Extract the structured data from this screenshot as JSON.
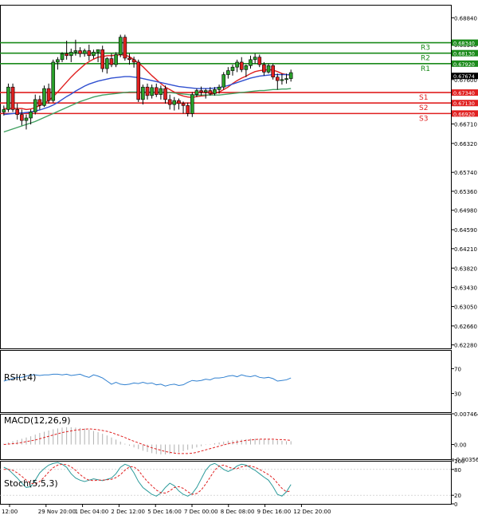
{
  "chart_data": [
    {
      "panel": "price",
      "type": "candlestick",
      "ylim": [
        0.6221,
        0.691
      ],
      "y_ticks": [
        "0.68840",
        "0.68300",
        "0.67600",
        "0.66710",
        "0.66320",
        "0.65740",
        "0.65360",
        "0.64980",
        "0.64590",
        "0.64210",
        "0.63820",
        "0.63430",
        "0.63050",
        "0.62660",
        "0.62280"
      ],
      "current_price": "0.67674",
      "x_ticks": [
        "12:00",
        "29 Nov 20:00",
        "1 Dec 04:00",
        "2 Dec 12:00",
        "5 Dec 16:00",
        "7 Dec 00:00",
        "8 Dec 08:00",
        "9 Dec 16:00",
        "12 Dec 20:00"
      ],
      "levels": [
        {
          "name": "R3",
          "value": 0.6834,
          "label": "0.68340",
          "color": "#1a8a1a"
        },
        {
          "name": "R2",
          "value": 0.6813,
          "label": "0.68130",
          "color": "#1a8a1a"
        },
        {
          "name": "R1",
          "value": 0.6792,
          "label": "0.67920",
          "color": "#1a8a1a"
        },
        {
          "name": "S1",
          "value": 0.6734,
          "label": "0.67340",
          "color": "#e02020"
        },
        {
          "name": "S2",
          "value": 0.6713,
          "label": "0.67130",
          "color": "#e02020"
        },
        {
          "name": "S3",
          "value": 0.6692,
          "label": "0.66920",
          "color": "#e02020"
        }
      ],
      "candles": [
        [
          0.6695,
          0.6708,
          0.6688,
          0.67
        ],
        [
          0.67,
          0.6752,
          0.6695,
          0.6745
        ],
        [
          0.6745,
          0.6752,
          0.6695,
          0.67
        ],
        [
          0.67,
          0.6712,
          0.668,
          0.669
        ],
        [
          0.669,
          0.67,
          0.6668,
          0.6678
        ],
        [
          0.6678,
          0.669,
          0.666,
          0.6683
        ],
        [
          0.6683,
          0.67,
          0.667,
          0.6695
        ],
        [
          0.6695,
          0.673,
          0.669,
          0.672
        ],
        [
          0.672,
          0.6728,
          0.67,
          0.6708
        ],
        [
          0.6708,
          0.6748,
          0.6705,
          0.6742
        ],
        [
          0.6742,
          0.6752,
          0.6712,
          0.6718
        ],
        [
          0.6718,
          0.68,
          0.6714,
          0.6795
        ],
        [
          0.6795,
          0.6805,
          0.678,
          0.68
        ],
        [
          0.68,
          0.6815,
          0.6795,
          0.6812
        ],
        [
          0.6812,
          0.6838,
          0.68,
          0.6808
        ],
        [
          0.6808,
          0.6822,
          0.6795,
          0.6815
        ],
        [
          0.6815,
          0.684,
          0.6808,
          0.6818
        ],
        [
          0.6818,
          0.6825,
          0.6805,
          0.6812
        ],
        [
          0.6812,
          0.6822,
          0.6806,
          0.6818
        ],
        [
          0.6818,
          0.683,
          0.6798,
          0.6808
        ],
        [
          0.6808,
          0.682,
          0.6802,
          0.6815
        ],
        [
          0.6815,
          0.682,
          0.6795,
          0.682
        ],
        [
          0.682,
          0.6828,
          0.6775,
          0.6782
        ],
        [
          0.6782,
          0.6805,
          0.6772,
          0.6802
        ],
        [
          0.6802,
          0.6812,
          0.6785,
          0.679
        ],
        [
          0.679,
          0.6815,
          0.6785,
          0.681
        ],
        [
          0.681,
          0.685,
          0.6805,
          0.6845
        ],
        [
          0.6845,
          0.685,
          0.6798,
          0.6803
        ],
        [
          0.6803,
          0.6812,
          0.679,
          0.68
        ],
        [
          0.68,
          0.6806,
          0.6784,
          0.6795
        ],
        [
          0.6795,
          0.68,
          0.6715,
          0.672
        ],
        [
          0.672,
          0.675,
          0.671,
          0.6745
        ],
        [
          0.6745,
          0.6752,
          0.672,
          0.6728
        ],
        [
          0.6728,
          0.675,
          0.6722,
          0.6744
        ],
        [
          0.6744,
          0.6752,
          0.6725,
          0.673
        ],
        [
          0.673,
          0.6748,
          0.672,
          0.6742
        ],
        [
          0.6742,
          0.6748,
          0.6712,
          0.672
        ],
        [
          0.672,
          0.673,
          0.67,
          0.671
        ],
        [
          0.671,
          0.6725,
          0.6698,
          0.6718
        ],
        [
          0.6718,
          0.6722,
          0.67,
          0.6712
        ],
        [
          0.6712,
          0.6716,
          0.6692,
          0.6708
        ],
        [
          0.6708,
          0.6714,
          0.6686,
          0.6692
        ],
        [
          0.6692,
          0.6735,
          0.6685,
          0.673
        ],
        [
          0.673,
          0.6742,
          0.6725,
          0.6738
        ],
        [
          0.6738,
          0.6746,
          0.6728,
          0.6735
        ],
        [
          0.6735,
          0.6742,
          0.6722,
          0.6738
        ],
        [
          0.6738,
          0.6745,
          0.6728,
          0.6732
        ],
        [
          0.6732,
          0.6745,
          0.6728,
          0.674
        ],
        [
          0.674,
          0.675,
          0.6732,
          0.6745
        ],
        [
          0.6745,
          0.6775,
          0.674,
          0.677
        ],
        [
          0.677,
          0.6785,
          0.6762,
          0.6778
        ],
        [
          0.6778,
          0.679,
          0.6768,
          0.6785
        ],
        [
          0.6785,
          0.68,
          0.6775,
          0.6795
        ],
        [
          0.6795,
          0.6805,
          0.6775,
          0.678
        ],
        [
          0.678,
          0.679,
          0.6765,
          0.6788
        ],
        [
          0.6788,
          0.6808,
          0.6782,
          0.68
        ],
        [
          0.68,
          0.6812,
          0.6792,
          0.6805
        ],
        [
          0.6805,
          0.681,
          0.6785,
          0.679
        ],
        [
          0.679,
          0.6795,
          0.6768,
          0.6775
        ],
        [
          0.6775,
          0.6792,
          0.6772,
          0.6788
        ],
        [
          0.6788,
          0.6792,
          0.676,
          0.6765
        ],
        [
          0.6765,
          0.6772,
          0.674,
          0.6758
        ],
        [
          0.6758,
          0.6772,
          0.675,
          0.676
        ],
        [
          0.676,
          0.6772,
          0.6752,
          0.6762
        ],
        [
          0.6762,
          0.678,
          0.6756,
          0.6774
        ]
      ],
      "ma": [
        {
          "name": "red",
          "color": "#e02020",
          "values": [
            0.6702,
            0.6702,
            0.6702,
            0.6702,
            0.6702,
            0.67,
            0.6701,
            0.6704,
            0.6708,
            0.6713,
            0.6718,
            0.6726,
            0.6735,
            0.6745,
            0.6755,
            0.6765,
            0.6774,
            0.6782,
            0.679,
            0.6796,
            0.6801,
            0.6805,
            0.6806,
            0.6808,
            0.6808,
            0.6809,
            0.681,
            0.6809,
            0.6806,
            0.68,
            0.6793,
            0.6786,
            0.6777,
            0.6768,
            0.676,
            0.6752,
            0.6745,
            0.674,
            0.6735,
            0.673,
            0.6727,
            0.6725,
            0.6724,
            0.6726,
            0.6727,
            0.6728,
            0.673,
            0.6733,
            0.6735,
            0.674,
            0.6745,
            0.6752,
            0.6758,
            0.6763,
            0.6767,
            0.6772,
            0.6776,
            0.6778,
            0.6779,
            0.678,
            0.6779,
            0.6776,
            0.6772,
            0.677,
            0.6769
          ]
        },
        {
          "name": "blue",
          "color": "#3050d0",
          "values": [
            0.669,
            0.6691,
            0.6692,
            0.6693,
            0.6693,
            0.6694,
            0.6695,
            0.6697,
            0.6699,
            0.6702,
            0.6705,
            0.6709,
            0.6714,
            0.672,
            0.6726,
            0.6731,
            0.6737,
            0.6742,
            0.6747,
            0.6751,
            0.6754,
            0.6757,
            0.6759,
            0.6761,
            0.6763,
            0.6764,
            0.6765,
            0.6766,
            0.6766,
            0.6765,
            0.6764,
            0.6762,
            0.676,
            0.6758,
            0.6756,
            0.6754,
            0.6752,
            0.675,
            0.6748,
            0.6746,
            0.6745,
            0.6744,
            0.6743,
            0.6742,
            0.6742,
            0.6742,
            0.6742,
            0.6743,
            0.6744,
            0.6746,
            0.6748,
            0.6751,
            0.6754,
            0.6757,
            0.676,
            0.6763,
            0.6765,
            0.6767,
            0.6768,
            0.6769,
            0.677,
            0.677,
            0.677,
            0.677,
            0.677
          ]
        },
        {
          "name": "green",
          "color": "#40a060",
          "values": [
            0.6655,
            0.6658,
            0.6661,
            0.6664,
            0.6667,
            0.667,
            0.6673,
            0.6676,
            0.668,
            0.6684,
            0.6688,
            0.6692,
            0.6696,
            0.67,
            0.6704,
            0.6708,
            0.6712,
            0.6716,
            0.6719,
            0.6722,
            0.6725,
            0.6727,
            0.6729,
            0.673,
            0.6731,
            0.6732,
            0.6733,
            0.6734,
            0.6735,
            0.6735,
            0.6735,
            0.6735,
            0.6735,
            0.6735,
            0.6735,
            0.6735,
            0.6734,
            0.6734,
            0.6733,
            0.6732,
            0.6731,
            0.673,
            0.6729,
            0.6729,
            0.6729,
            0.6729,
            0.6729,
            0.6729,
            0.6729,
            0.673,
            0.6731,
            0.6732,
            0.6733,
            0.6734,
            0.6735,
            0.6736,
            0.6737,
            0.6738,
            0.6738,
            0.6739,
            0.674,
            0.674,
            0.6741,
            0.6741,
            0.6742
          ]
        }
      ]
    },
    {
      "panel": "rsi",
      "type": "line",
      "label": "RSI(14)",
      "ylim": [
        0,
        100
      ],
      "y_ticks": [
        {
          "v": 70,
          "t": "70"
        },
        {
          "v": 30,
          "t": "30"
        }
      ],
      "values": [
        50,
        52,
        54,
        56,
        56,
        58,
        60,
        60,
        59,
        60,
        60,
        61,
        61,
        60,
        61,
        59,
        60,
        61,
        58,
        56,
        60,
        58,
        55,
        50,
        45,
        48,
        45,
        44,
        45,
        47,
        46,
        48,
        46,
        47,
        44,
        45,
        42,
        44,
        45,
        43,
        44,
        48,
        51,
        50,
        51,
        53,
        52,
        55,
        55,
        56,
        58,
        59,
        57,
        60,
        58,
        57,
        59,
        56,
        55,
        56,
        54,
        50,
        51,
        52,
        55
      ],
      "color": "#3080d0"
    },
    {
      "panel": "macd",
      "type": "histogram+line",
      "label": "MACD(12,26,9)",
      "ylim": [
        -0.003568,
        0.007464
      ],
      "y_ticks": [
        {
          "v": 0.007464,
          "t": "0.007464"
        },
        {
          "v": 0,
          "t": "0.00"
        },
        {
          "v": -0.003568,
          "t": "-0.003568"
        }
      ],
      "histogram": [
        0.0002,
        0.0005,
        0.0008,
        0.0011,
        0.0014,
        0.0017,
        0.002,
        0.0024,
        0.0028,
        0.0031,
        0.0034,
        0.0037,
        0.0039,
        0.0041,
        0.0042,
        0.0042,
        0.0041,
        0.004,
        0.0039,
        0.0036,
        0.0033,
        0.003,
        0.0026,
        0.0022,
        0.0017,
        0.0012,
        0.0007,
        0.0002,
        -0.0003,
        -0.0007,
        -0.0011,
        -0.0015,
        -0.0018,
        -0.0021,
        -0.0023,
        -0.0024,
        -0.0024,
        -0.0023,
        -0.0021,
        -0.0019,
        -0.0016,
        -0.0013,
        -0.001,
        -0.0007,
        -0.0004,
        -0.0001,
        0.0001,
        0.0003,
        0.0005,
        0.0007,
        0.0009,
        0.001,
        0.0011,
        0.0012,
        0.0013,
        0.0014,
        0.0014,
        0.0013,
        0.0013,
        0.0012,
        0.0011,
        0.001,
        0.0009,
        0.0008,
        0.0008
      ],
      "signal": [
        0.0,
        0.0001,
        0.0002,
        0.0003,
        0.0005,
        0.0007,
        0.0009,
        0.0011,
        0.0014,
        0.0017,
        0.002,
        0.0023,
        0.0026,
        0.0029,
        0.0031,
        0.0033,
        0.0035,
        0.0036,
        0.0037,
        0.0038,
        0.0037,
        0.0036,
        0.0034,
        0.0032,
        0.0029,
        0.0025,
        0.0021,
        0.0017,
        0.0012,
        0.0008,
        0.0004,
        0.0,
        -0.0004,
        -0.0008,
        -0.0011,
        -0.0014,
        -0.0017,
        -0.0019,
        -0.0021,
        -0.0022,
        -0.0022,
        -0.0022,
        -0.0021,
        -0.0019,
        -0.0016,
        -0.0013,
        -0.001,
        -0.0007,
        -0.0004,
        -0.0001,
        0.0002,
        0.0004,
        0.0006,
        0.0008,
        0.001,
        0.0011,
        0.0012,
        0.0013,
        0.0013,
        0.0013,
        0.0013,
        0.0012,
        0.0012,
        0.0011,
        0.001
      ],
      "histogram_color": "#b0b0b0",
      "signal_color": "#e02020"
    },
    {
      "panel": "stoch",
      "type": "line",
      "label": "Stoch(5,5,3)",
      "ylim": [
        0,
        100
      ],
      "y_ticks": [
        {
          "v": 100,
          "t": "100"
        },
        {
          "v": 80,
          "t": "80"
        },
        {
          "v": 20,
          "t": "20"
        },
        {
          "v": 0,
          "t": "0"
        }
      ],
      "main": [
        85,
        80,
        70,
        60,
        48,
        38,
        40,
        55,
        72,
        82,
        90,
        94,
        96,
        92,
        85,
        70,
        60,
        55,
        52,
        55,
        58,
        56,
        54,
        57,
        60,
        70,
        85,
        92,
        88,
        72,
        52,
        38,
        30,
        22,
        18,
        25,
        38,
        48,
        42,
        30,
        22,
        18,
        24,
        38,
        58,
        78,
        90,
        94,
        88,
        80,
        75,
        80,
        88,
        92,
        90,
        84,
        78,
        70,
        62,
        55,
        40,
        22,
        18,
        28,
        45
      ],
      "signal": [
        80,
        80,
        78,
        72,
        64,
        55,
        48,
        46,
        52,
        62,
        74,
        84,
        90,
        92,
        91,
        86,
        78,
        68,
        60,
        55,
        54,
        55,
        55,
        56,
        57,
        61,
        68,
        78,
        86,
        86,
        78,
        64,
        52,
        42,
        32,
        26,
        25,
        30,
        38,
        40,
        36,
        28,
        22,
        24,
        32,
        46,
        62,
        78,
        88,
        90,
        86,
        82,
        82,
        86,
        88,
        88,
        85,
        80,
        74,
        68,
        60,
        48,
        36,
        28,
        30
      ],
      "main_color": "#2a9a9a",
      "signal_color": "#e02020"
    }
  ]
}
